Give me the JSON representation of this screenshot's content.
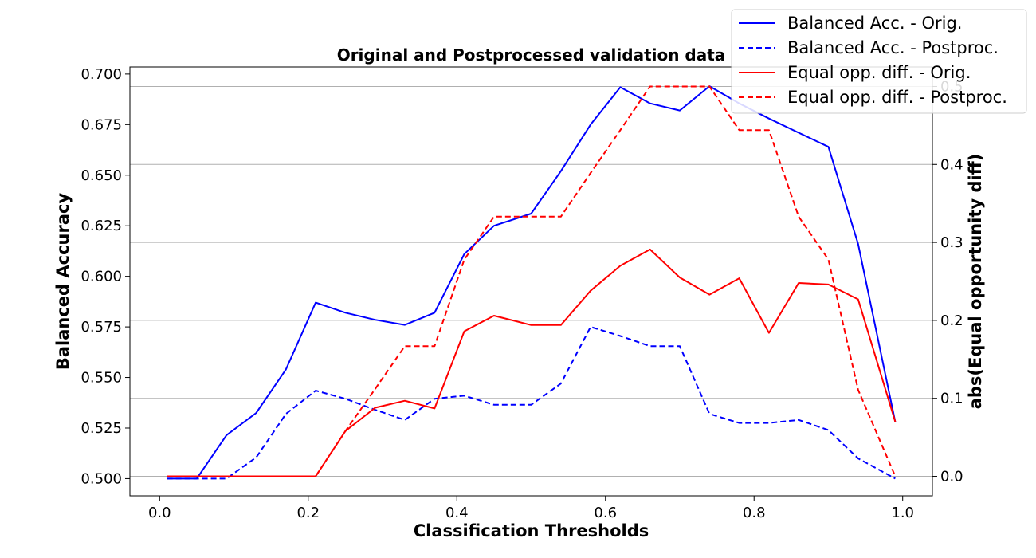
{
  "chart_data": {
    "type": "line",
    "title": "Original and Postprocessed validation data",
    "xlabel": "Classification Thresholds",
    "ylabel_left": "Balanced Accuracy",
    "ylabel_right": "abs(Equal opportunity diff)",
    "ylabel_left_color": "#0000ff",
    "ylabel_right_color": "#ff0000",
    "xlim": [
      -0.04,
      1.04
    ],
    "ylim_left": [
      0.4915,
      0.7035
    ],
    "ylim_right": [
      -0.025,
      0.525
    ],
    "x_ticks": [
      0.0,
      0.2,
      0.4,
      0.6,
      0.8,
      1.0
    ],
    "x_tick_labels": [
      "0.0",
      "0.2",
      "0.4",
      "0.6",
      "0.8",
      "1.0"
    ],
    "y_left_ticks": [
      0.5,
      0.525,
      0.55,
      0.575,
      0.6,
      0.625,
      0.65,
      0.675,
      0.7
    ],
    "y_left_tick_labels": [
      "0.500",
      "0.525",
      "0.550",
      "0.575",
      "0.600",
      "0.625",
      "0.650",
      "0.675",
      "0.700"
    ],
    "y_right_ticks": [
      0.0,
      0.1,
      0.2,
      0.3,
      0.4,
      0.5
    ],
    "y_right_tick_labels": [
      "0.0",
      "0.1",
      "0.2",
      "0.3",
      "0.4",
      "0.5"
    ],
    "grid": "right-axis horizontal",
    "legend_position": "top-right",
    "x": [
      0.01,
      0.05,
      0.09,
      0.13,
      0.17,
      0.21,
      0.25,
      0.29,
      0.33,
      0.37,
      0.41,
      0.45,
      0.5,
      0.54,
      0.58,
      0.62,
      0.66,
      0.7,
      0.74,
      0.78,
      0.82,
      0.86,
      0.9,
      0.94,
      0.99
    ],
    "series": [
      {
        "name": "Balanced Acc. - Orig.",
        "axis": "left",
        "color": "#0000ff",
        "style": "solid",
        "values": [
          0.5,
          0.5,
          0.5215,
          0.5325,
          0.554,
          0.587,
          0.582,
          0.5785,
          0.576,
          0.582,
          0.611,
          0.625,
          0.631,
          0.652,
          0.675,
          0.6935,
          0.6855,
          0.682,
          0.694,
          0.6855,
          0.678,
          0.671,
          0.664,
          0.616,
          0.528
        ]
      },
      {
        "name": "Balanced Acc. - Postproc.",
        "axis": "left",
        "color": "#0000ff",
        "style": "dashed",
        "values": [
          0.5,
          0.5,
          0.5,
          0.5105,
          0.532,
          0.5435,
          0.5395,
          0.534,
          0.529,
          0.5395,
          0.541,
          0.5365,
          0.5365,
          0.547,
          0.575,
          0.5705,
          0.5655,
          0.5655,
          0.532,
          0.5275,
          0.5275,
          0.529,
          0.524,
          0.51,
          0.5
        ]
      },
      {
        "name": "Equal opp. diff. - Orig.",
        "axis": "right",
        "color": "#ff0000",
        "style": "solid",
        "values": [
          0.0,
          0.0,
          0.0,
          0.0,
          0.0,
          0.0,
          0.058,
          0.088,
          0.097,
          0.087,
          0.186,
          0.206,
          0.194,
          0.194,
          0.238,
          0.27,
          0.291,
          0.255,
          0.233,
          0.254,
          0.184,
          0.248,
          0.246,
          0.227,
          0.07
        ]
      },
      {
        "name": "Equal opp. diff. - Postproc.",
        "axis": "right",
        "color": "#ff0000",
        "style": "dashed",
        "values": [
          0.0,
          0.0,
          0.0,
          0.0,
          0.0,
          0.0,
          0.058,
          0.112,
          0.167,
          0.167,
          0.278,
          0.333,
          0.333,
          0.333,
          0.389,
          0.444,
          0.5,
          0.5,
          0.5,
          0.444,
          0.444,
          0.333,
          0.278,
          0.111,
          0.0
        ]
      }
    ]
  }
}
